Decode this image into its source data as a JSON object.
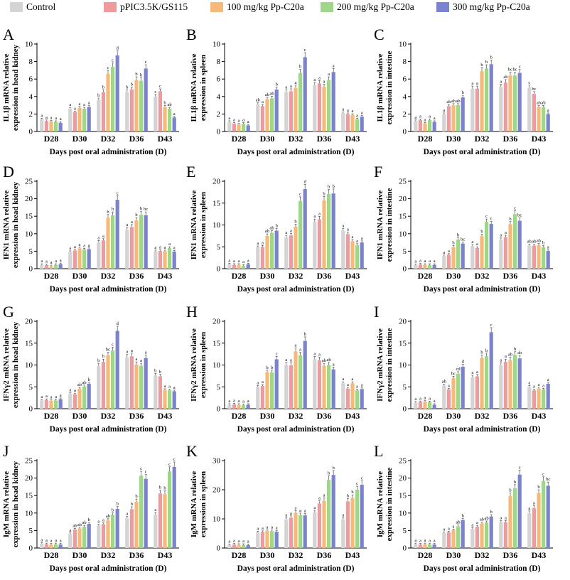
{
  "legend": {
    "items": [
      {
        "label": "Control",
        "color": "#d4d4d4"
      },
      {
        "label": "pPIC3.5K/GS115",
        "color": "#f19a9e"
      },
      {
        "label": "100 mg/kg Pp-C20a",
        "color": "#f7b97a"
      },
      {
        "label": "200 mg/kg Pp-C20a",
        "color": "#9fd68a"
      },
      {
        "label": "300 mg/kg Pp-C20a",
        "color": "#7b83d0"
      }
    ]
  },
  "chart_data": [
    {
      "panel": "A",
      "type": "bar",
      "ylabel": "IL1β mRNA relative expression in head kidney",
      "xlabel": "Days post oral administration (D)",
      "categories": [
        "D28",
        "D30",
        "D32",
        "D36",
        "D43"
      ],
      "ylim": [
        0,
        10
      ],
      "ticks": [
        0,
        2,
        4,
        6,
        8,
        10
      ],
      "series": [
        [
          1.4,
          2.6,
          3.6,
          4.5,
          4.0
        ],
        [
          1.2,
          2.2,
          4.5,
          4.8,
          4.6
        ],
        [
          1.15,
          2.7,
          6.6,
          5.9,
          2.8
        ],
        [
          1.1,
          2.6,
          7.4,
          5.8,
          2.6
        ],
        [
          1.0,
          2.8,
          8.7,
          7.2,
          1.6
        ]
      ],
      "letters": [
        [
          "a",
          "a",
          "b",
          "b",
          "c"
        ],
        [
          "a",
          "a",
          "b",
          "b",
          "c"
        ],
        [
          "a",
          "a",
          "c",
          "b",
          "b"
        ],
        [
          "a",
          "a",
          "c",
          "b",
          "ab"
        ],
        [
          "a",
          "a",
          "d",
          "c",
          "a"
        ]
      ]
    },
    {
      "panel": "B",
      "type": "bar",
      "ylabel": "IL1β mRNA relative expression in spleen",
      "xlabel": "Days post oral administration (D)",
      "categories": [
        "D28",
        "D30",
        "D32",
        "D36",
        "D43"
      ],
      "ylim": [
        0,
        10
      ],
      "ticks": [
        0,
        2,
        4,
        6,
        8,
        10
      ],
      "series": [
        [
          1.1,
          3.1,
          4.5,
          5.3,
          2.1
        ],
        [
          0.9,
          2.9,
          4.6,
          5.5,
          2.0
        ],
        [
          0.8,
          3.7,
          5.0,
          5.1,
          1.9
        ],
        [
          0.9,
          3.8,
          6.7,
          5.9,
          1.4
        ],
        [
          0.7,
          4.8,
          8.5,
          6.8,
          1.7
        ]
      ],
      "letters": [
        [
          "a",
          "ab",
          "a",
          "a",
          "a"
        ],
        [
          "a",
          "a",
          "a",
          "a",
          "a"
        ],
        [
          "a",
          "ab",
          "a",
          "a",
          "a"
        ],
        [
          "a",
          "ab",
          "b",
          "a",
          "a"
        ],
        [
          "a",
          "b",
          "c",
          "a",
          "a"
        ]
      ]
    },
    {
      "panel": "C",
      "type": "bar",
      "ylabel": "IL1β mRNA relative expression in intestine",
      "xlabel": "Days post oral administration (D)",
      "categories": [
        "D28",
        "D30",
        "D32",
        "D36",
        "D43"
      ],
      "ylim": [
        0,
        10
      ],
      "ticks": [
        0,
        2,
        4,
        6,
        8,
        10
      ],
      "series": [
        [
          1.2,
          2.0,
          4.9,
          5.1,
          5.0
        ],
        [
          1.3,
          2.9,
          4.9,
          5.6,
          4.3
        ],
        [
          0.9,
          3.0,
          6.9,
          6.4,
          2.8
        ],
        [
          1.3,
          3.0,
          7.2,
          6.4,
          2.8
        ],
        [
          1.1,
          3.9,
          7.7,
          6.7,
          2.0
        ]
      ],
      "letters": [
        [
          "a",
          "a",
          "a",
          "a",
          "c"
        ],
        [
          "a",
          "ab",
          "a",
          "ab",
          "bc"
        ],
        [
          "a",
          "ab",
          "b",
          "bc",
          "ab"
        ],
        [
          "a",
          "ab",
          "b",
          "bc",
          "ab"
        ],
        [
          "a",
          "b",
          "b",
          "c",
          "a"
        ]
      ]
    },
    {
      "panel": "D",
      "type": "bar",
      "ylabel": "IFN1 mRNA relative expression in head kidney",
      "xlabel": "Days post oral administration (D)",
      "categories": [
        "D28",
        "D30",
        "D32",
        "D36",
        "D43"
      ],
      "ylim": [
        0,
        25
      ],
      "ticks": [
        0,
        5,
        10,
        15,
        20,
        25
      ],
      "series": [
        [
          1.1,
          4.8,
          7.6,
          11.1,
          5.0
        ],
        [
          1.0,
          5.2,
          8.1,
          11.9,
          5.1
        ],
        [
          0.7,
          5.8,
          14.6,
          13.8,
          5.0
        ],
        [
          1.1,
          5.5,
          15.3,
          15.4,
          5.9
        ],
        [
          1.3,
          5.6,
          19.7,
          15.3,
          4.9
        ]
      ],
      "letters": [
        [
          "a",
          "a",
          "a",
          "a",
          "a"
        ],
        [
          "a",
          "a",
          "a",
          "a",
          "a"
        ],
        [
          "a",
          "a",
          "b",
          "b",
          "a"
        ],
        [
          "a",
          "a",
          "b",
          "b",
          "a"
        ],
        [
          "a",
          "a",
          "c",
          "bc",
          "a"
        ]
      ]
    },
    {
      "panel": "E",
      "type": "bar",
      "ylabel": "IFN1 mRNA relative expression in spleen",
      "xlabel": "Days post oral administration (D)",
      "categories": [
        "D28",
        "D30",
        "D32",
        "D36",
        "D43"
      ],
      "ylim": [
        0,
        20
      ],
      "ticks": [
        0,
        5,
        10,
        15,
        20
      ],
      "series": [
        [
          1.0,
          4.9,
          7.2,
          10.7,
          8.7
        ],
        [
          0.9,
          5.0,
          7.6,
          11.3,
          7.9
        ],
        [
          0.9,
          7.5,
          9.6,
          15.6,
          6.3
        ],
        [
          0.7,
          8.2,
          15.5,
          17.1,
          5.4
        ],
        [
          1.0,
          8.7,
          18.2,
          17.2,
          6.0
        ]
      ],
      "letters": [
        [
          "a",
          "a",
          "a",
          "a",
          "a"
        ],
        [
          "a",
          "a",
          "a",
          "a",
          "a"
        ],
        [
          "a",
          "ab",
          "b",
          "b",
          "a"
        ],
        [
          "a",
          "ab",
          "c",
          "b",
          "a"
        ],
        [
          "a",
          "b",
          "d",
          "b",
          "a"
        ]
      ]
    },
    {
      "panel": "F",
      "type": "bar",
      "ylabel": "IFN1 mRNA relative expression in intestine",
      "xlabel": "Days post oral administration (D)",
      "categories": [
        "D28",
        "D30",
        "D32",
        "D36",
        "D43"
      ],
      "ylim": [
        0,
        25
      ],
      "ticks": [
        0,
        5,
        10,
        15,
        20,
        25
      ],
      "series": [
        [
          1.0,
          3.6,
          6.5,
          8.3,
          6.6
        ],
        [
          1.2,
          4.0,
          5.9,
          9.0,
          6.6
        ],
        [
          1.1,
          6.2,
          9.3,
          12.7,
          6.8
        ],
        [
          1.1,
          8.3,
          13.4,
          15.6,
          6.2
        ],
        [
          1.1,
          7.2,
          12.8,
          13.7,
          5.1
        ]
      ],
      "letters": [
        [
          "a",
          "a",
          "a",
          "a",
          "ab"
        ],
        [
          "a",
          "a",
          "a",
          "a",
          "ab"
        ],
        [
          "a",
          "b",
          "b",
          "b",
          "ab"
        ],
        [
          "a",
          "b",
          "c",
          "c",
          "b"
        ],
        [
          "a",
          "bc",
          "c",
          "bc",
          "a"
        ]
      ]
    },
    {
      "panel": "G",
      "type": "bar",
      "ylabel": "IFNγ2 mRNA relative expression in head kidney",
      "xlabel": "Days post oral administration (D)",
      "categories": [
        "D28",
        "D30",
        "D32",
        "D36",
        "D43"
      ],
      "ylim": [
        0,
        20
      ],
      "ticks": [
        0,
        5,
        10,
        15,
        20
      ],
      "series": [
        [
          1.9,
          3.4,
          9.8,
          11.7,
          7.6
        ],
        [
          2.0,
          3.3,
          10.7,
          12.0,
          7.4
        ],
        [
          1.8,
          4.6,
          12.2,
          10.1,
          4.3
        ],
        [
          1.9,
          5.1,
          13.3,
          9.8,
          4.2
        ],
        [
          2.2,
          5.7,
          17.8,
          11.6,
          4.0
        ]
      ],
      "letters": [
        [
          "a",
          "a",
          "b",
          "a",
          "b"
        ],
        [
          "a",
          "a",
          "b",
          "a",
          "b"
        ],
        [
          "a",
          "ab",
          "bc",
          "a",
          "a"
        ],
        [
          "a",
          "ab",
          "c",
          "a",
          "a"
        ],
        [
          "a",
          "b",
          "d",
          "a",
          "a"
        ]
      ]
    },
    {
      "panel": "H",
      "type": "bar",
      "ylabel": "IFNγ2 mRNA relative expression in spleen",
      "xlabel": "Days post oral administration (D)",
      "categories": [
        "D28",
        "D30",
        "D32",
        "D36",
        "D43"
      ],
      "ylim": [
        0,
        20
      ],
      "ticks": [
        0,
        5,
        10,
        15,
        20
      ],
      "series": [
        [
          0.9,
          5.0,
          10.0,
          11.3,
          5.8
        ],
        [
          1.0,
          5.2,
          9.9,
          11.1,
          4.6
        ],
        [
          0.9,
          8.3,
          13.1,
          9.8,
          5.8
        ],
        [
          0.8,
          8.3,
          12.2,
          10.0,
          4.2
        ],
        [
          0.9,
          11.3,
          15.5,
          9.0,
          4.5
        ]
      ],
      "letters": [
        [
          "a",
          "a",
          "a",
          "a",
          "a"
        ],
        [
          "a",
          "a",
          "a",
          "a",
          "a"
        ],
        [
          "a",
          "b",
          "a",
          "ab",
          "a"
        ],
        [
          "a",
          "b",
          "a",
          "ab",
          "a"
        ],
        [
          "a",
          "c",
          "b",
          "a",
          "a"
        ]
      ]
    },
    {
      "panel": "I",
      "type": "bar",
      "ylabel": "IFNγ2 mRNA relative expression in intestine",
      "xlabel": "Days post oral administration (D)",
      "categories": [
        "D28",
        "D30",
        "D32",
        "D36",
        "D43"
      ],
      "ylim": [
        0,
        20
      ],
      "ticks": [
        0,
        5,
        10,
        15,
        20
      ],
      "series": [
        [
          1.4,
          5.3,
          7.2,
          9.9,
          5.0
        ],
        [
          1.5,
          4.4,
          7.4,
          10.7,
          4.2
        ],
        [
          1.6,
          7.0,
          11.6,
          11.1,
          4.6
        ],
        [
          1.5,
          8.0,
          12.0,
          12.3,
          4.4
        ],
        [
          0.9,
          9.6,
          17.5,
          11.5,
          5.7
        ]
      ],
      "letters": [
        [
          "a",
          "ab",
          "a",
          "a",
          "a"
        ],
        [
          "a",
          "a",
          "a",
          "a",
          "a"
        ],
        [
          "a",
          "bc",
          "b",
          "ab",
          "a"
        ],
        [
          "a",
          "cd",
          "b",
          "b",
          "a"
        ],
        [
          "a",
          "d",
          "c",
          "ab",
          "a"
        ]
      ]
    },
    {
      "panel": "J",
      "type": "bar",
      "ylabel": "IgM mRNA relative expression in head kidney",
      "xlabel": "Days post oral administration (D)",
      "categories": [
        "D28",
        "D30",
        "D32",
        "D36",
        "D43"
      ],
      "ylim": [
        0,
        25
      ],
      "ticks": [
        0,
        5,
        10,
        15,
        20,
        25
      ],
      "series": [
        [
          1.2,
          4.0,
          6.4,
          8.5,
          9.6
        ],
        [
          1.1,
          5.3,
          6.8,
          11.1,
          15.6
        ],
        [
          1.0,
          5.6,
          7.9,
          13.2,
          15.4
        ],
        [
          1.1,
          6.1,
          9.5,
          20.7,
          21.9
        ],
        [
          1.0,
          6.9,
          11.2,
          19.8,
          23.2
        ]
      ],
      "letters": [
        [
          "a",
          "a",
          "a",
          "a",
          "a"
        ],
        [
          "a",
          "ab",
          "a",
          "b",
          "b"
        ],
        [
          "a",
          "ab",
          "ab",
          "b",
          "b"
        ],
        [
          "a",
          "ab",
          "b",
          "c",
          "c"
        ],
        [
          "a",
          "b",
          "b",
          "c",
          "c"
        ]
      ]
    },
    {
      "panel": "K",
      "type": "bar",
      "ylabel": "IgM mRNA relative expression in spleen",
      "xlabel": "Days post oral administration (D)",
      "categories": [
        "D28",
        "D30",
        "D32",
        "D36",
        "D43"
      ],
      "ylim": [
        0,
        30
      ],
      "ticks": [
        0,
        10,
        20,
        30
      ],
      "series": [
        [
          1.0,
          5.4,
          9.8,
          12.2,
          9.8
        ],
        [
          1.2,
          5.5,
          10.4,
          15.3,
          16.0
        ],
        [
          1.1,
          5.9,
          12.1,
          16.2,
          17.2
        ],
        [
          1.1,
          5.8,
          11.3,
          23.4,
          20.0
        ],
        [
          1.0,
          5.6,
          11.2,
          25.1,
          21.7
        ]
      ],
      "letters": [
        [
          "a",
          "a",
          "a",
          "a",
          "a"
        ],
        [
          "a",
          "a",
          "a",
          "a",
          "b"
        ],
        [
          "a",
          "a",
          "a",
          "a",
          "b"
        ],
        [
          "a",
          "a",
          "a",
          "b",
          "c"
        ],
        [
          "a",
          "a",
          "a",
          "b",
          "c"
        ]
      ]
    },
    {
      "panel": "L",
      "type": "bar",
      "ylabel": "IgM mRNA relative expression in intestine",
      "xlabel": "Days post oral administration (D)",
      "categories": [
        "D28",
        "D30",
        "D32",
        "D36",
        "D43"
      ],
      "ylim": [
        0,
        25
      ],
      "ticks": [
        0,
        5,
        10,
        15,
        20,
        25
      ],
      "series": [
        [
          1.1,
          4.3,
          5.5,
          7.4,
          10.0
        ],
        [
          1.0,
          4.5,
          6.1,
          7.4,
          11.4
        ],
        [
          1.1,
          5.1,
          7.0,
          14.9,
          15.7
        ],
        [
          1.0,
          6.2,
          7.3,
          17.1,
          19.2
        ],
        [
          1.0,
          8.0,
          9.0,
          21.0,
          17.8
        ]
      ],
      "letters": [
        [
          "a",
          "a",
          "a",
          "a",
          "a"
        ],
        [
          "a",
          "a",
          "a",
          "a",
          "a"
        ],
        [
          "a",
          "a",
          "ab",
          "b",
          "b"
        ],
        [
          "a",
          "ab",
          "ab",
          "b",
          "c"
        ],
        [
          "a",
          "b",
          "b",
          "c",
          "bc"
        ]
      ]
    }
  ]
}
